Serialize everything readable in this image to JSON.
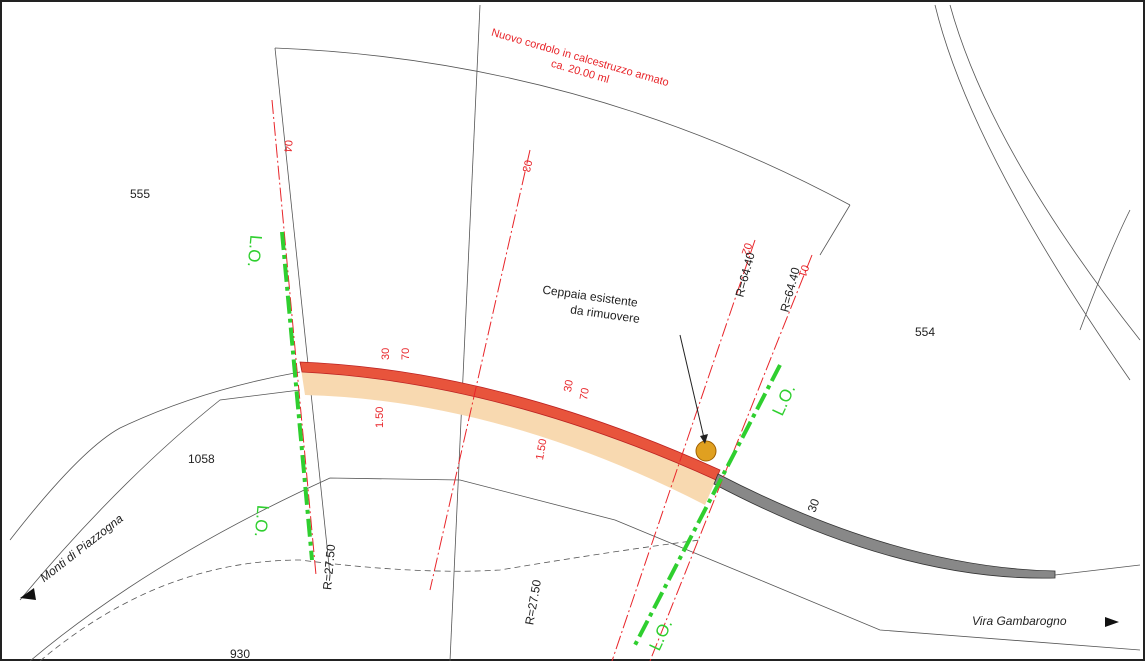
{
  "annotation": [
    "Nuovo cordolo in calcestruzzo armato",
    "ca. 20.00 ml"
  ],
  "sections": [
    "04",
    "03",
    "02",
    "01"
  ],
  "parcels": [
    "555",
    "554",
    "1058",
    "930"
  ],
  "boundary_labels": [
    "L.O.",
    "L.O.",
    "L.O.",
    "L.O."
  ],
  "callout": [
    "Ceppaia esistente",
    "da rimuovere"
  ],
  "dimensions": [
    "30",
    "70",
    "1.50",
    "30",
    "70",
    "1.50",
    "30"
  ],
  "radii": [
    "R=27.50",
    "R=27.50",
    "R=64.40",
    "R=64.40"
  ],
  "directions": [
    "Monti di Piazzogna",
    "Vira Gambarogno"
  ]
}
